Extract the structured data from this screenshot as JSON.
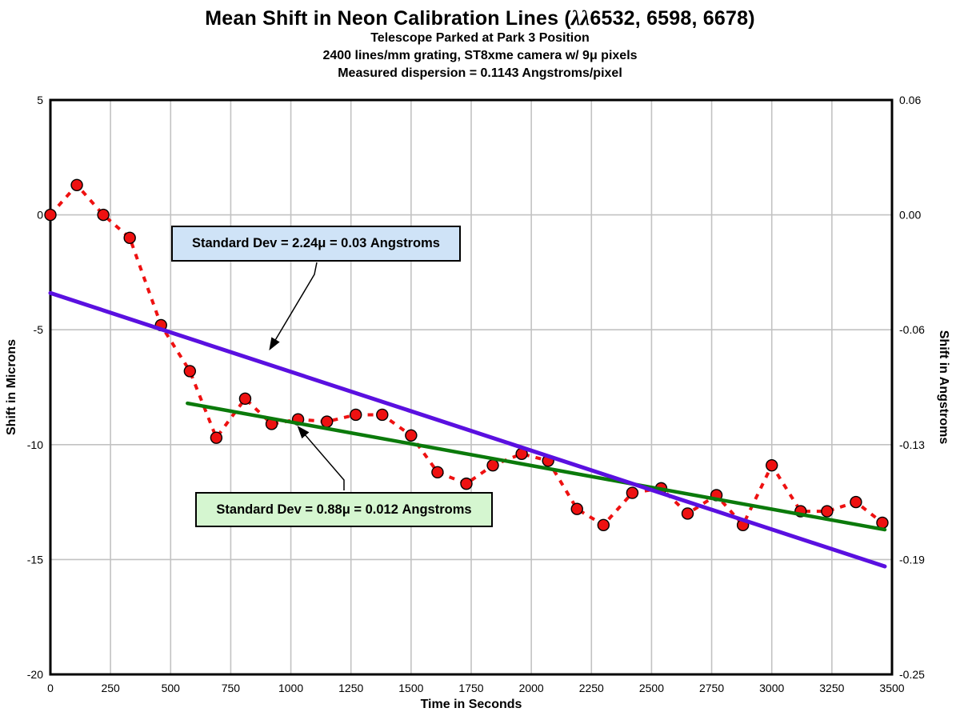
{
  "header": {
    "title_prefix": "Mean Shift in Neon Calibration Lines (",
    "title_lambda": "λλ",
    "title_suffix": "6532, 6598, 6678)",
    "subtitle1": "Telescope Parked at Park 3 Position",
    "subtitle2": "2400 lines/mm grating, ST8xme camera w/ 9μ pixels",
    "subtitle3": "Measured dispersion = 0.1143 Angstroms/pixel"
  },
  "axes": {
    "x": {
      "title": "Time in Seconds"
    },
    "left": {
      "title": "Shift in Microns"
    },
    "right": {
      "title": "Shift in Angstroms"
    }
  },
  "colors": {
    "series_red": "#ee1111",
    "trend_purple": "#5a10e0",
    "trend_green": "#0b7a0b",
    "grid": "#c2c2c2",
    "frame": "#000000",
    "annot_blue_fill": "#cfe3f7",
    "annot_green_fill": "#d5f6d0"
  },
  "chart_data": {
    "type": "line",
    "title": "Mean Shift in Neon Calibration Lines (λλ6532, 6598, 6678)",
    "subtitles": [
      "Telescope Parked at Park 3 Position",
      "2400 lines/mm grating, ST8xme camera w/ 9μ pixels",
      "Measured dispersion = 0.1143 Angstroms/pixel"
    ],
    "xlabel": "Time in Seconds",
    "ylabel_left": "Shift in Microns",
    "ylabel_right": "Shift in Angstroms",
    "xlim": [
      0,
      3500
    ],
    "ylim_left": [
      -20,
      5
    ],
    "ylim_right": [
      -0.25,
      0.06
    ],
    "grid": true,
    "x_ticks": [
      0,
      250,
      500,
      750,
      1000,
      1250,
      1500,
      1750,
      2000,
      2250,
      2500,
      2750,
      3000,
      3250,
      3500
    ],
    "y_ticks_left": [
      5,
      0,
      -5,
      -10,
      -15,
      -20
    ],
    "y_ticks_right_labels": [
      "0.06",
      "0.00",
      "-0.06",
      "-0.13",
      "-0.19",
      "-0.25"
    ],
    "series": [
      {
        "name": "neon-line-mean-shift",
        "style": "dashed-with-circle-markers",
        "color": "#ee1111",
        "width": 4,
        "x": [
          0,
          110,
          220,
          330,
          460,
          580,
          690,
          810,
          920,
          1030,
          1150,
          1270,
          1380,
          1500,
          1610,
          1730,
          1840,
          1960,
          2070,
          2190,
          2300,
          2420,
          2540,
          2650,
          2770,
          2880,
          3000,
          3120,
          3230,
          3350,
          3460
        ],
        "y": [
          0.0,
          1.3,
          0.0,
          -1.0,
          -4.8,
          -6.8,
          -9.7,
          -8.0,
          -9.1,
          -8.9,
          -9.0,
          -8.7,
          -8.7,
          -9.6,
          -11.2,
          -11.7,
          -10.9,
          -10.4,
          -10.7,
          -12.8,
          -13.5,
          -12.1,
          -11.9,
          -13.0,
          -12.2,
          -13.5,
          -10.9,
          -12.9,
          -12.9,
          -12.5,
          -13.4
        ]
      },
      {
        "name": "linear-fit-green",
        "style": "solid",
        "color": "#0b7a0b",
        "width": 4.5,
        "x": [
          570,
          3470
        ],
        "y": [
          -8.2,
          -13.7
        ]
      },
      {
        "name": "linear-fit-purple",
        "style": "solid",
        "color": "#5a10e0",
        "width": 5,
        "x": [
          0,
          3470
        ],
        "y": [
          -3.4,
          -15.3
        ]
      }
    ],
    "annotations": [
      {
        "label": "Standard Dev = 2.24μ = 0.03 Angstroms",
        "fill": "#cfe3f7",
        "points_to": "linear-fit-purple"
      },
      {
        "label": "Standard Dev = 0.88μ = 0.012 Angstroms",
        "fill": "#d5f6d0",
        "points_to": "linear-fit-green"
      }
    ]
  }
}
